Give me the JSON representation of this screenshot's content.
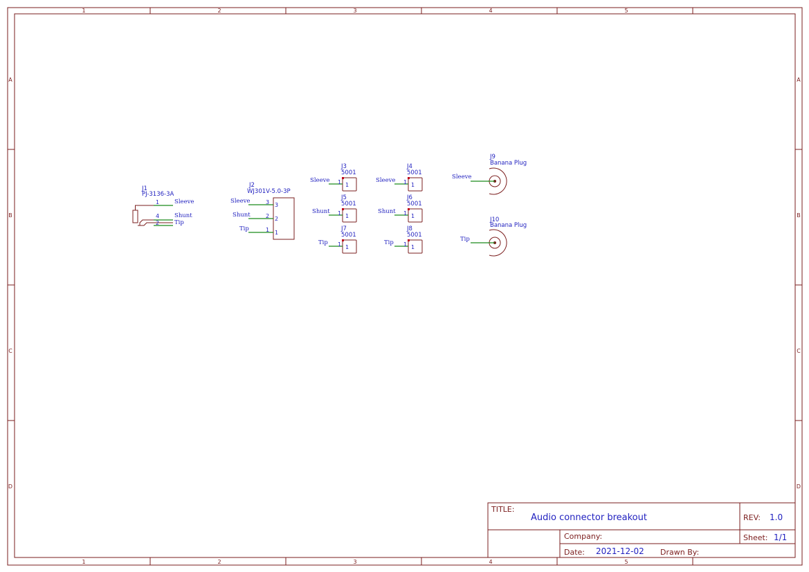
{
  "grid": {
    "cols": [
      "1",
      "2",
      "3",
      "4",
      "5"
    ],
    "rows": [
      "A",
      "B",
      "C",
      "D"
    ]
  },
  "title_block": {
    "title_label": "TITLE:",
    "title": "Audio connector breakout",
    "rev_label": "REV:",
    "rev": "1.0",
    "company_label": "Company:",
    "company": "",
    "sheet_label": "Sheet:",
    "sheet": "1/1",
    "date_label": "Date:",
    "date": "2021-12-02",
    "drawn_by_label": "Drawn By:",
    "drawn_by": ""
  },
  "components": {
    "j1": {
      "ref": "J1",
      "value": "PJ-3136-3A",
      "pins": [
        "1",
        "4",
        "2"
      ],
      "nets": [
        "Sleeve",
        "Shunt",
        "Tip"
      ]
    },
    "j2": {
      "ref": "J2",
      "value": "WJ301V-5.0-3P",
      "pins": [
        "3",
        "2",
        "1"
      ],
      "nets": [
        "Sleeve",
        "Shunt",
        "Tip"
      ]
    },
    "j3": {
      "ref": "J3",
      "value": "5001",
      "pin": "1",
      "net": "Sleeve"
    },
    "j4": {
      "ref": "J4",
      "value": "5001",
      "pin": "1",
      "net": "Sleeve"
    },
    "j5": {
      "ref": "J5",
      "value": "5001",
      "pin": "1",
      "net": "Shunt"
    },
    "j6": {
      "ref": "J6",
      "value": "5001",
      "pin": "1",
      "net": "Shunt"
    },
    "j7": {
      "ref": "J7",
      "value": "5001",
      "pin": "1",
      "net": "Tip"
    },
    "j8": {
      "ref": "J8",
      "value": "5001",
      "pin": "1",
      "net": "Tip"
    },
    "j9": {
      "ref": "J9",
      "value": "Banana Plug",
      "net": "Sleeve"
    },
    "j10": {
      "ref": "J10",
      "value": "Banana Plug",
      "net": "Tip"
    }
  },
  "colors": {
    "frame": "#7a1c1c",
    "wire": "#1a8a1a",
    "text": "#1f1fbf",
    "pin_dot": "#c0001a"
  }
}
